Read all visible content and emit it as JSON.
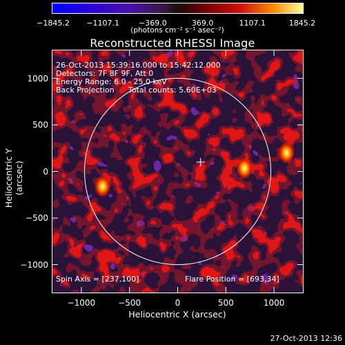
{
  "colorbar": {
    "ticks": [
      "−1845.2",
      "−1107.1",
      "−369.0",
      "369.0",
      "1107.1",
      "1845.2"
    ],
    "units": "(photons cm⁻² s⁻¹ asec⁻²)"
  },
  "title": "Reconstructed RHESSI Image",
  "info": {
    "line1": "26-Oct-2013 15:39:16.000 to 15:42:12.000",
    "line2": "Detectors: 7F 8F 9F, Att 0",
    "line3": "Energy Range: 6.0 - 25.0 keV",
    "line4_left": "Back Projection",
    "line4_right": "Total counts: 5.60E+03",
    "spin_axis": "Spin Axis = [237,100]",
    "flare_position": "Flare Position = [693,34]"
  },
  "axes": {
    "xlabel": "Heliocentric X (arcsec)",
    "ylabel": "Heliocentric Y (arcsec)",
    "xticks": [
      {
        "value": -1000,
        "label": "−1000"
      },
      {
        "value": -500,
        "label": "−500"
      },
      {
        "value": 0,
        "label": "0"
      },
      {
        "value": 500,
        "label": "500"
      },
      {
        "value": 1000,
        "label": "1000"
      }
    ],
    "yticks": [
      {
        "value": 1000,
        "label": "1000"
      },
      {
        "value": 500,
        "label": "500"
      },
      {
        "value": 0,
        "label": "0"
      },
      {
        "value": -500,
        "label": "−500"
      },
      {
        "value": -1000,
        "label": "−1000"
      }
    ],
    "xlim": [
      -1300,
      1300
    ],
    "ylim": [
      -1300,
      1300
    ]
  },
  "solar_limb_radius": 967,
  "sources": [
    {
      "x": 693,
      "y": 34
    },
    {
      "x": -780,
      "y": -160
    },
    {
      "x": 1130,
      "y": 200
    }
  ],
  "timestamp": "27-Oct-2013 12:36"
}
